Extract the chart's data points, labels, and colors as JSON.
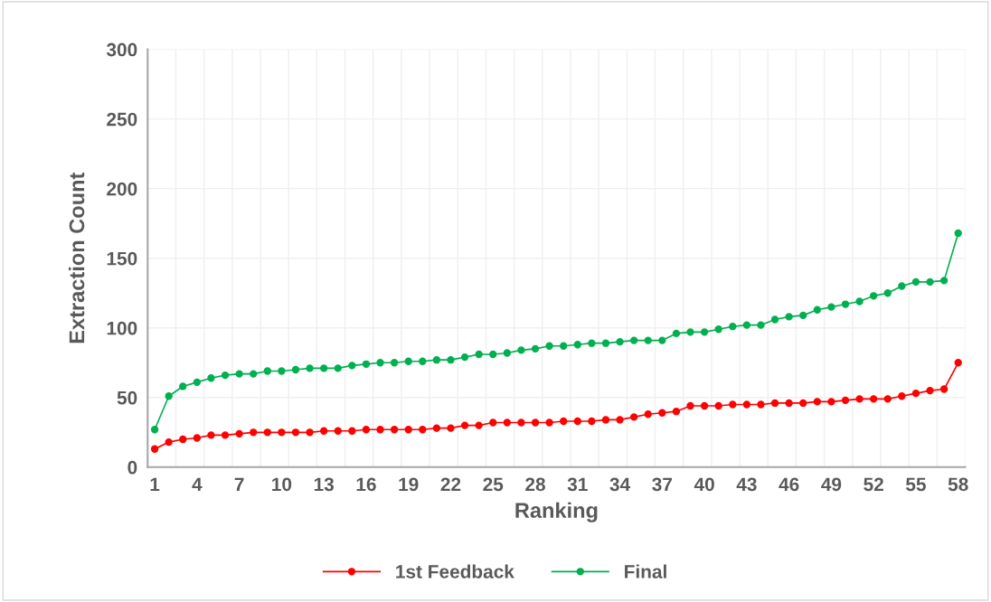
{
  "chart_data": {
    "type": "line",
    "xlabel": "Ranking",
    "ylabel": "Extraction Count",
    "categories": [
      "1",
      null,
      null,
      "4",
      null,
      null,
      "7",
      null,
      null,
      "10",
      null,
      null,
      "13",
      null,
      null,
      "16",
      null,
      null,
      "19",
      null,
      null,
      "22",
      null,
      null,
      "25",
      null,
      null,
      "28",
      null,
      null,
      "31",
      null,
      null,
      "34",
      null,
      null,
      "37",
      null,
      null,
      "40",
      null,
      null,
      "43",
      null,
      null,
      "46",
      null,
      null,
      "49",
      null,
      null,
      "52",
      null,
      null,
      "55",
      null,
      null,
      "58"
    ],
    "series": [
      {
        "name": "1st Feedback",
        "color": "#ff0000",
        "values": [
          13,
          18,
          20,
          21,
          23,
          23,
          24,
          25,
          25,
          25,
          25,
          25,
          26,
          26,
          26,
          27,
          27,
          27,
          27,
          27,
          28,
          28,
          30,
          30,
          32,
          32,
          32,
          32,
          32,
          33,
          33,
          33,
          34,
          34,
          36,
          38,
          39,
          40,
          44,
          44,
          44,
          45,
          45,
          45,
          46,
          46,
          46,
          47,
          47,
          48,
          49,
          49,
          49,
          51,
          53,
          55,
          56,
          75
        ]
      },
      {
        "name": "Final",
        "color": "#00b050",
        "values": [
          27,
          51,
          58,
          61,
          64,
          66,
          67,
          67,
          69,
          69,
          70,
          71,
          71,
          71,
          73,
          74,
          75,
          75,
          76,
          76,
          77,
          77,
          79,
          81,
          81,
          82,
          84,
          85,
          87,
          87,
          88,
          89,
          89,
          90,
          91,
          91,
          91,
          96,
          97,
          97,
          99,
          101,
          102,
          102,
          106,
          108,
          109,
          113,
          115,
          117,
          119,
          123,
          125,
          130,
          133,
          133,
          134,
          168
        ]
      }
    ],
    "ylim": [
      0,
      300
    ],
    "yticks": [
      0,
      50,
      100,
      150,
      200,
      250,
      300
    ],
    "grid": true,
    "legend": "bottom",
    "marker": "circle",
    "line_style": "solid"
  }
}
